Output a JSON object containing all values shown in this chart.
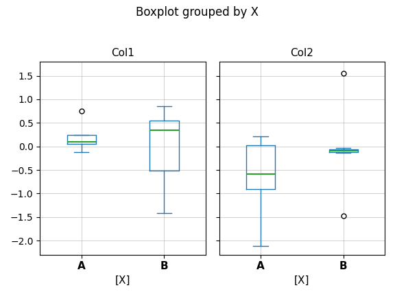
{
  "title": "Boxplot grouped by X",
  "subplots": [
    "Col1",
    "Col2"
  ],
  "xlabel": "[X]",
  "groups": [
    "A",
    "B"
  ],
  "col1": {
    "A": {
      "whislo": -0.12,
      "q1": 0.05,
      "med": 0.1,
      "q3": 0.24,
      "whishi": 0.24,
      "fliers": [
        0.75
      ]
    },
    "B": {
      "whislo": -1.42,
      "q1": -0.52,
      "med": 0.35,
      "q3": 0.55,
      "whishi": 0.86,
      "fliers": []
    }
  },
  "col2": {
    "A": {
      "whislo": -2.12,
      "q1": -0.9,
      "med": -0.58,
      "q3": 0.02,
      "whishi": 0.22,
      "fliers": []
    },
    "B": {
      "whislo": -0.14,
      "q1": -0.115,
      "med": -0.09,
      "q3": -0.06,
      "whishi": -0.03,
      "fliers": [
        1.55,
        -1.48
      ]
    }
  },
  "box_color": "#1f77b4",
  "median_color": "#2ca02c",
  "flier_color": "black",
  "ylim": [
    -2.3,
    1.8
  ],
  "yticks": [
    -2.0,
    -1.5,
    -1.0,
    -0.5,
    0.0,
    0.5,
    1.0,
    1.5
  ],
  "figsize": [
    5.76,
    4.32
  ],
  "dpi": 100
}
